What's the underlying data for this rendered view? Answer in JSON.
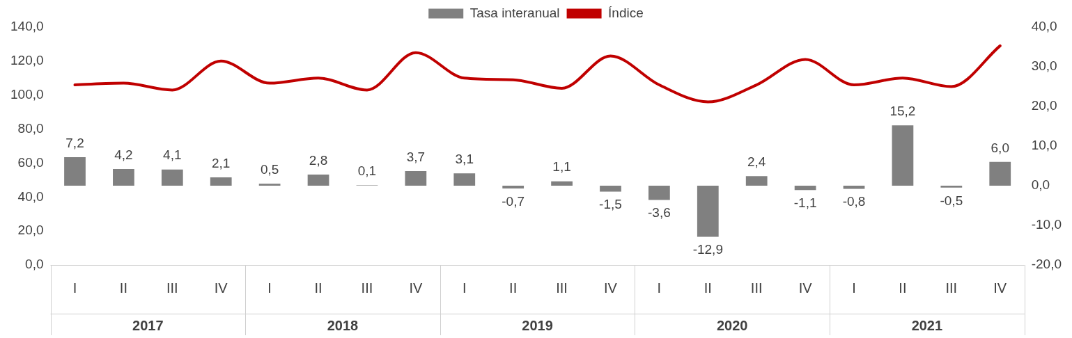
{
  "chart_data": {
    "type": "bar",
    "categories": [
      "I",
      "II",
      "III",
      "IV",
      "I",
      "II",
      "III",
      "IV",
      "I",
      "II",
      "III",
      "IV",
      "I",
      "II",
      "III",
      "IV",
      "I",
      "II",
      "III",
      "IV"
    ],
    "annotations": [
      "2017",
      "2018",
      "2019",
      "2020",
      "2021"
    ],
    "series": [
      {
        "name": "Tasa interanual",
        "axis": "y2",
        "color": "#808080",
        "values": [
          7.2,
          4.2,
          4.1,
          2.1,
          0.5,
          2.8,
          0.1,
          3.7,
          3.1,
          -0.7,
          1.1,
          -1.5,
          -3.6,
          -12.9,
          2.4,
          -1.1,
          -0.8,
          15.2,
          -0.5,
          6.0
        ],
        "value_labels": [
          "7,2",
          "4,2",
          "4,1",
          "2,1",
          "0,5",
          "2,8",
          "0,1",
          "3,7",
          "3,1",
          "-0,7",
          "1,1",
          "-1,5",
          "-3,6",
          "-12,9",
          "2,4",
          "-1,1",
          "-0,8",
          "15,2",
          "-0,5",
          "6,0"
        ]
      },
      {
        "name": "Índice",
        "type": "line",
        "color": "#c00000",
        "values": [
          106,
          107,
          103,
          120,
          107,
          110,
          103,
          125,
          110,
          109,
          104,
          123,
          106,
          96,
          106,
          121,
          106,
          110,
          105,
          129
        ]
      }
    ],
    "ylim": [
      0,
      140
    ],
    "yticks": [
      {
        "value": 0,
        "label": "0,0"
      },
      {
        "value": 20,
        "label": "20,0"
      },
      {
        "value": 40,
        "label": "40,0"
      },
      {
        "value": 60,
        "label": "60,0"
      },
      {
        "value": 80,
        "label": "80,0"
      },
      {
        "value": 100,
        "label": "100,0"
      },
      {
        "value": 120,
        "label": "120,0"
      },
      {
        "value": 140,
        "label": "140,0"
      }
    ],
    "y2lim": [
      -20,
      40
    ],
    "y2ticks": [
      {
        "value": -20,
        "label": "-20,0"
      },
      {
        "value": -10,
        "label": "-10,0"
      },
      {
        "value": 0,
        "label": "0,0"
      },
      {
        "value": 10,
        "label": "10,0"
      },
      {
        "value": 20,
        "label": "20,0"
      },
      {
        "value": 30,
        "label": "30,0"
      },
      {
        "value": 40,
        "label": "40,0"
      }
    ],
    "grid": false,
    "legend": "top",
    "marker": "none",
    "line_style": "solid"
  }
}
